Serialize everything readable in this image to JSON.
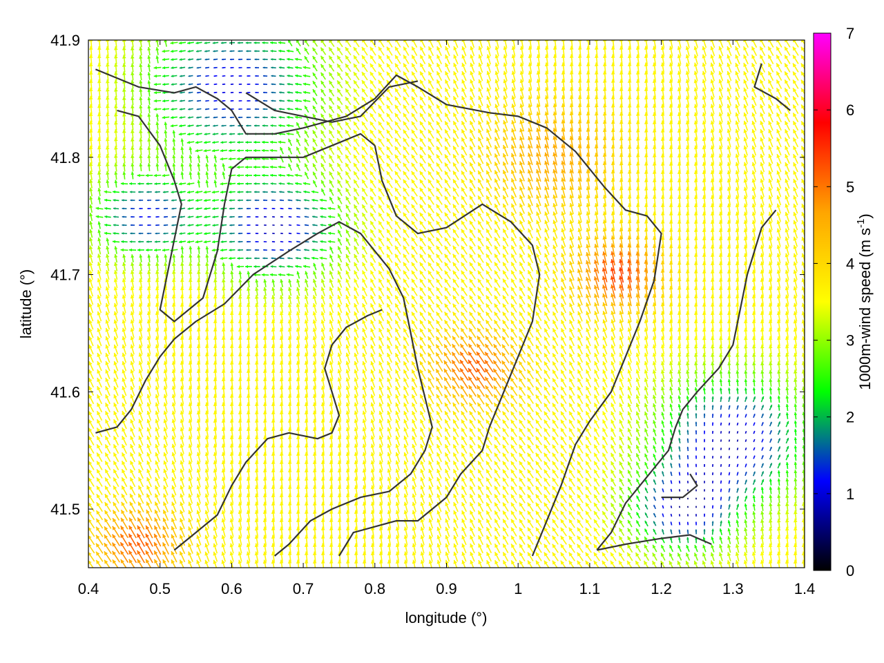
{
  "chart_data": {
    "type": "vector-field",
    "title": "",
    "xlabel": "longitude (°)",
    "ylabel": "latitude (°)",
    "xlim": [
      0.4,
      1.4
    ],
    "ylim": [
      41.45,
      41.9
    ],
    "x_ticks": [
      "0.4",
      "0.5",
      "0.6",
      "0.7",
      "0.8",
      "0.9",
      "1",
      "1.1",
      "1.2",
      "1.3",
      "1.4"
    ],
    "y_ticks": [
      "41.5",
      "41.6",
      "41.7",
      "41.8",
      "41.9"
    ],
    "x_tick_values": [
      0.4,
      0.5,
      0.6,
      0.7,
      0.8,
      0.9,
      1.0,
      1.1,
      1.2,
      1.3,
      1.4
    ],
    "y_tick_values": [
      41.5,
      41.6,
      41.7,
      41.8,
      41.9
    ],
    "grid": false,
    "colorbar": {
      "label": "1000m-wind speed (m s",
      "label_sup": "-1",
      "label_close": ")",
      "range": [
        0,
        7
      ],
      "ticks": [
        "0",
        "1",
        "2",
        "3",
        "4",
        "5",
        "6",
        "7"
      ],
      "tick_values": [
        0,
        1,
        2,
        3,
        4,
        5,
        6,
        7
      ],
      "palette": [
        "#000000",
        "#0000ff",
        "#00ff00",
        "#ffff00",
        "#ffa500",
        "#ff0000",
        "#ff00ff"
      ]
    },
    "wind_speed_centers": [
      {
        "lon": 0.6,
        "lat": 41.86,
        "speed": 1.0,
        "sigma": 0.08
      },
      {
        "lon": 0.48,
        "lat": 41.75,
        "speed": 1.2,
        "sigma": 0.05
      },
      {
        "lon": 0.66,
        "lat": 41.74,
        "speed": 0.8,
        "sigma": 0.06
      },
      {
        "lon": 1.3,
        "lat": 41.56,
        "speed": 0.8,
        "sigma": 0.07
      },
      {
        "lon": 1.23,
        "lat": 41.5,
        "speed": 1.0,
        "sigma": 0.05
      },
      {
        "lon": 1.14,
        "lat": 41.7,
        "speed": 5.4,
        "sigma": 0.04
      },
      {
        "lon": 0.94,
        "lat": 41.62,
        "speed": 5.2,
        "sigma": 0.04
      },
      {
        "lon": 1.05,
        "lat": 41.8,
        "speed": 4.6,
        "sigma": 0.06
      },
      {
        "lon": 0.47,
        "lat": 41.47,
        "speed": 5.2,
        "sigma": 0.04
      }
    ],
    "background_speed": 3.6,
    "contours": [
      [
        [
          0.41,
          41.875
        ],
        [
          0.47,
          41.86
        ],
        [
          0.52,
          41.855
        ],
        [
          0.55,
          41.86
        ],
        [
          0.58,
          41.85
        ],
        [
          0.6,
          41.84
        ],
        [
          0.62,
          41.82
        ],
        [
          0.66,
          41.82
        ],
        [
          0.7,
          41.825
        ],
        [
          0.73,
          41.83
        ],
        [
          0.76,
          41.835
        ],
        [
          0.8,
          41.85
        ],
        [
          0.83,
          41.87
        ],
        [
          0.86,
          41.86
        ],
        [
          0.9,
          41.845
        ],
        [
          0.96,
          41.838
        ],
        [
          1.0,
          41.835
        ],
        [
          1.04,
          41.825
        ],
        [
          1.08,
          41.805
        ],
        [
          1.12,
          41.775
        ],
        [
          1.15,
          41.755
        ],
        [
          1.18,
          41.75
        ],
        [
          1.2,
          41.735
        ],
        [
          1.19,
          41.695
        ],
        [
          1.17,
          41.66
        ],
        [
          1.15,
          41.63
        ],
        [
          1.13,
          41.6
        ],
        [
          1.1,
          41.575
        ],
        [
          1.08,
          41.555
        ],
        [
          1.06,
          41.52
        ],
        [
          1.04,
          41.49
        ],
        [
          1.02,
          41.46
        ]
      ],
      [
        [
          0.62,
          41.855
        ],
        [
          0.66,
          41.84
        ],
        [
          0.7,
          41.835
        ],
        [
          0.74,
          41.83
        ],
        [
          0.78,
          41.835
        ],
        [
          0.82,
          41.86
        ],
        [
          0.86,
          41.865
        ]
      ],
      [
        [
          0.8,
          41.81
        ],
        [
          0.81,
          41.78
        ],
        [
          0.83,
          41.75
        ],
        [
          0.86,
          41.735
        ],
        [
          0.9,
          41.74
        ],
        [
          0.95,
          41.76
        ],
        [
          0.99,
          41.745
        ],
        [
          1.02,
          41.725
        ],
        [
          1.03,
          41.7
        ],
        [
          1.02,
          41.66
        ],
        [
          1.0,
          41.63
        ],
        [
          0.98,
          41.6
        ],
        [
          0.96,
          41.57
        ],
        [
          0.95,
          41.55
        ],
        [
          0.92,
          41.53
        ],
        [
          0.9,
          41.51
        ],
        [
          0.88,
          41.5
        ],
        [
          0.86,
          41.49
        ],
        [
          0.83,
          41.49
        ],
        [
          0.8,
          41.485
        ],
        [
          0.77,
          41.48
        ],
        [
          0.75,
          41.46
        ]
      ],
      [
        [
          0.41,
          41.565
        ],
        [
          0.44,
          41.57
        ],
        [
          0.46,
          41.585
        ],
        [
          0.48,
          41.61
        ],
        [
          0.5,
          41.63
        ],
        [
          0.52,
          41.645
        ],
        [
          0.55,
          41.66
        ],
        [
          0.59,
          41.675
        ],
        [
          0.63,
          41.7
        ],
        [
          0.68,
          41.72
        ],
        [
          0.72,
          41.735
        ],
        [
          0.75,
          41.745
        ],
        [
          0.78,
          41.735
        ],
        [
          0.82,
          41.705
        ],
        [
          0.84,
          41.68
        ],
        [
          0.85,
          41.65
        ],
        [
          0.86,
          41.62
        ],
        [
          0.87,
          41.595
        ],
        [
          0.88,
          41.57
        ],
        [
          0.87,
          41.55
        ],
        [
          0.85,
          41.53
        ],
        [
          0.82,
          41.515
        ],
        [
          0.78,
          41.51
        ],
        [
          0.74,
          41.5
        ],
        [
          0.71,
          41.49
        ],
        [
          0.68,
          41.47
        ],
        [
          0.66,
          41.46
        ]
      ],
      [
        [
          0.52,
          41.465
        ],
        [
          0.55,
          41.48
        ],
        [
          0.58,
          41.495
        ],
        [
          0.6,
          41.52
        ],
        [
          0.62,
          41.54
        ],
        [
          0.65,
          41.56
        ],
        [
          0.68,
          41.565
        ],
        [
          0.72,
          41.56
        ],
        [
          0.74,
          41.565
        ],
        [
          0.75,
          41.58
        ],
        [
          0.74,
          41.6
        ],
        [
          0.73,
          41.62
        ],
        [
          0.74,
          41.64
        ],
        [
          0.76,
          41.655
        ],
        [
          0.79,
          41.665
        ],
        [
          0.81,
          41.67
        ]
      ],
      [
        [
          1.36,
          41.755
        ],
        [
          1.34,
          41.74
        ],
        [
          1.33,
          41.72
        ],
        [
          1.32,
          41.7
        ],
        [
          1.31,
          41.67
        ],
        [
          1.3,
          41.64
        ],
        [
          1.28,
          41.62
        ],
        [
          1.25,
          41.6
        ],
        [
          1.23,
          41.585
        ],
        [
          1.22,
          41.57
        ],
        [
          1.21,
          41.55
        ],
        [
          1.19,
          41.535
        ],
        [
          1.17,
          41.52
        ],
        [
          1.15,
          41.505
        ],
        [
          1.13,
          41.48
        ],
        [
          1.11,
          41.465
        ]
      ],
      [
        [
          1.11,
          41.465
        ],
        [
          1.15,
          41.47
        ],
        [
          1.2,
          41.475
        ],
        [
          1.24,
          41.478
        ],
        [
          1.27,
          41.47
        ]
      ],
      [
        [
          1.2,
          41.51
        ],
        [
          1.23,
          41.51
        ],
        [
          1.25,
          41.52
        ],
        [
          1.24,
          41.53
        ]
      ],
      [
        [
          0.44,
          41.84
        ],
        [
          0.47,
          41.835
        ],
        [
          0.5,
          41.81
        ],
        [
          0.52,
          41.78
        ],
        [
          0.53,
          41.76
        ],
        [
          0.52,
          41.73
        ],
        [
          0.51,
          41.7
        ],
        [
          0.5,
          41.67
        ],
        [
          0.52,
          41.66
        ],
        [
          0.56,
          41.68
        ],
        [
          0.58,
          41.72
        ],
        [
          0.59,
          41.76
        ],
        [
          0.6,
          41.79
        ],
        [
          0.62,
          41.8
        ],
        [
          0.65,
          41.8
        ],
        [
          0.7,
          41.8
        ],
        [
          0.74,
          41.81
        ],
        [
          0.78,
          41.82
        ],
        [
          0.8,
          41.81
        ]
      ],
      [
        [
          1.34,
          41.88
        ],
        [
          1.33,
          41.86
        ],
        [
          1.36,
          41.85
        ],
        [
          1.38,
          41.84
        ]
      ]
    ]
  }
}
